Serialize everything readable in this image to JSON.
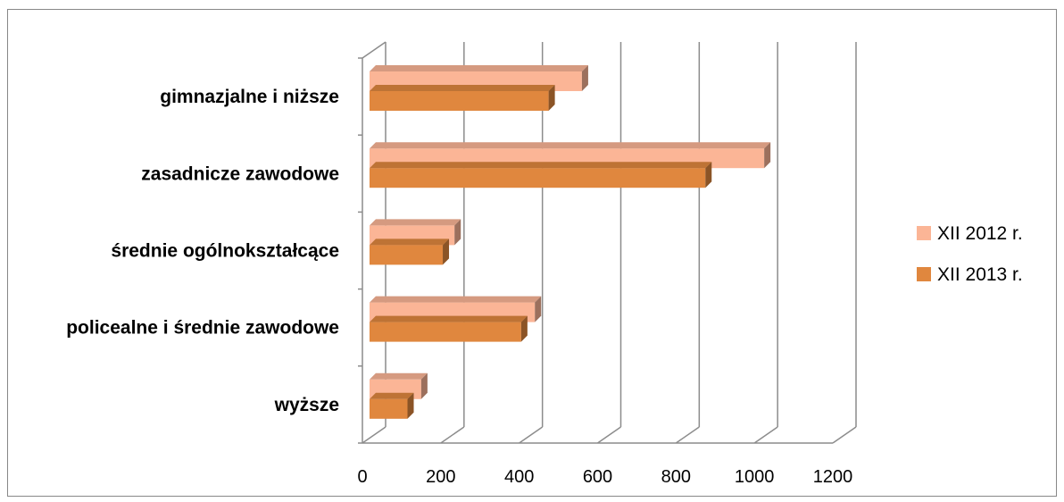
{
  "chart_data": {
    "type": "bar",
    "orientation": "horizontal",
    "categories": [
      "gimnazjalne i niższe",
      "zasadnicze zawodowe",
      "średnie ogólnokształcące",
      "policealne i średnie zawodowe",
      "wyższe"
    ],
    "series": [
      {
        "name": "XII 2012 r.",
        "color": "#fbb596",
        "values": [
          560,
          1025,
          235,
          440,
          150
        ]
      },
      {
        "name": "XII 2013 r.",
        "color": "#e0873e",
        "values": [
          475,
          875,
          205,
          405,
          115
        ]
      }
    ],
    "xlim": [
      0,
      1200
    ],
    "xticks": [
      "0",
      "200",
      "400",
      "600",
      "800",
      "1000",
      "1200"
    ],
    "grid": true,
    "legend_position": "right",
    "title": "",
    "xlabel": "",
    "ylabel": ""
  }
}
